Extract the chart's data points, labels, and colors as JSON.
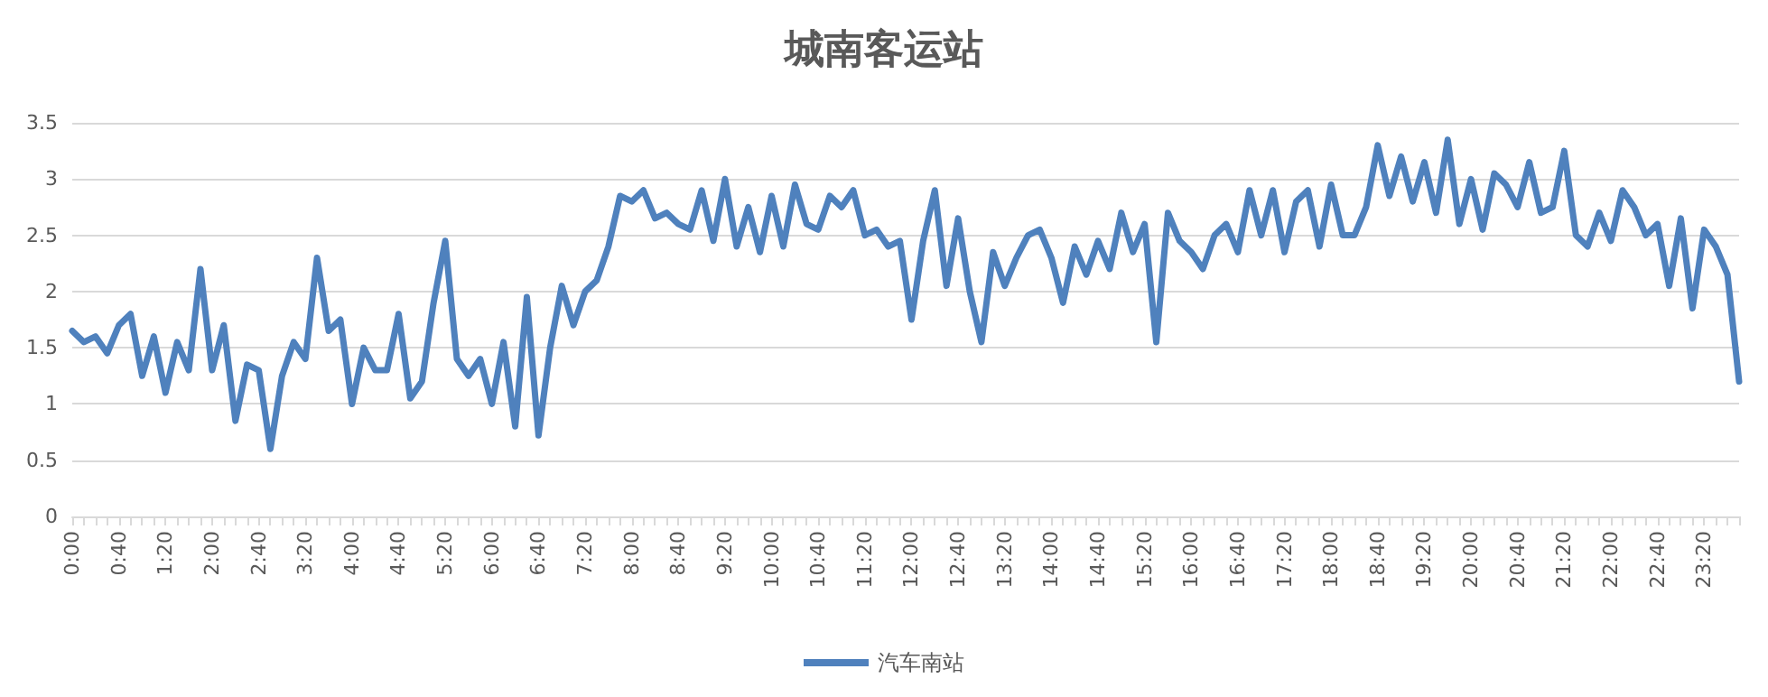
{
  "chart_data": {
    "type": "line",
    "title": "城南客运站",
    "categories": [
      "0:00",
      null,
      null,
      null,
      "0:40",
      null,
      null,
      null,
      "1:20",
      null,
      null,
      null,
      "2:00",
      null,
      null,
      null,
      "2:40",
      null,
      null,
      null,
      "3:20",
      null,
      null,
      null,
      "4:00",
      null,
      null,
      null,
      "4:40",
      null,
      null,
      null,
      "5:20",
      null,
      null,
      null,
      "6:00",
      null,
      null,
      null,
      "6:40",
      null,
      null,
      null,
      "7:20",
      null,
      null,
      null,
      "8:00",
      null,
      null,
      null,
      "8:40",
      null,
      null,
      null,
      "9:20",
      null,
      null,
      null,
      "10:00",
      null,
      null,
      null,
      "10:40",
      null,
      null,
      null,
      "11:20",
      null,
      null,
      null,
      "12:00",
      null,
      null,
      null,
      "12:40",
      null,
      null,
      null,
      "13:20",
      null,
      null,
      null,
      "14:00",
      null,
      null,
      null,
      "14:40",
      null,
      null,
      null,
      "15:20",
      null,
      null,
      null,
      "16:00",
      null,
      null,
      null,
      "16:40",
      null,
      null,
      null,
      "17:20",
      null,
      null,
      null,
      "18:00",
      null,
      null,
      null,
      "18:40",
      null,
      null,
      null,
      "19:20",
      null,
      null,
      null,
      "20:00",
      null,
      null,
      null,
      "20:40",
      null,
      null,
      null,
      "21:20",
      null,
      null,
      null,
      "22:00",
      null,
      null,
      null,
      "22:40",
      null,
      null,
      null,
      "23:20",
      null,
      null,
      null
    ],
    "series": [
      {
        "name": "汽车南站",
        "color": "#4f81bd",
        "values": [
          1.65,
          1.55,
          1.6,
          1.45,
          1.7,
          1.8,
          1.25,
          1.6,
          1.1,
          1.55,
          1.3,
          2.2,
          1.3,
          1.7,
          0.85,
          1.35,
          1.3,
          0.6,
          1.25,
          1.55,
          1.4,
          2.3,
          1.65,
          1.75,
          1.0,
          1.5,
          1.3,
          1.3,
          1.8,
          1.05,
          1.2,
          1.9,
          2.45,
          1.4,
          1.25,
          1.4,
          1.0,
          1.55,
          0.8,
          1.95,
          0.72,
          1.5,
          2.05,
          1.7,
          2.0,
          2.1,
          2.4,
          2.85,
          2.8,
          2.9,
          2.65,
          2.7,
          2.6,
          2.55,
          2.9,
          2.45,
          3.0,
          2.4,
          2.75,
          2.35,
          2.85,
          2.4,
          2.95,
          2.6,
          2.55,
          2.85,
          2.75,
          2.9,
          2.5,
          2.55,
          2.4,
          2.45,
          1.75,
          2.45,
          2.9,
          2.05,
          2.65,
          2.0,
          1.55,
          2.35,
          2.05,
          2.3,
          2.5,
          2.55,
          2.3,
          1.9,
          2.4,
          2.15,
          2.45,
          2.2,
          2.7,
          2.35,
          2.6,
          1.55,
          2.7,
          2.45,
          2.35,
          2.2,
          2.5,
          2.6,
          2.35,
          2.9,
          2.5,
          2.9,
          2.35,
          2.8,
          2.9,
          2.4,
          2.95,
          2.5,
          2.5,
          2.75,
          3.3,
          2.85,
          3.2,
          2.8,
          3.15,
          2.7,
          3.35,
          2.6,
          3.0,
          2.55,
          3.05,
          2.95,
          2.75,
          3.15,
          2.7,
          2.75,
          3.25,
          2.5,
          2.4,
          2.7,
          2.45,
          2.9,
          2.75,
          2.5,
          2.6,
          2.05,
          2.65,
          1.85,
          2.55,
          2.4,
          2.15,
          1.2
        ]
      }
    ],
    "ylim": [
      0,
      3.5
    ],
    "yticks": [
      0,
      0.5,
      1,
      1.5,
      2,
      2.5,
      3,
      3.5
    ],
    "grid": "y",
    "legend": "bottom",
    "marker": "none",
    "line_style": "solid"
  }
}
